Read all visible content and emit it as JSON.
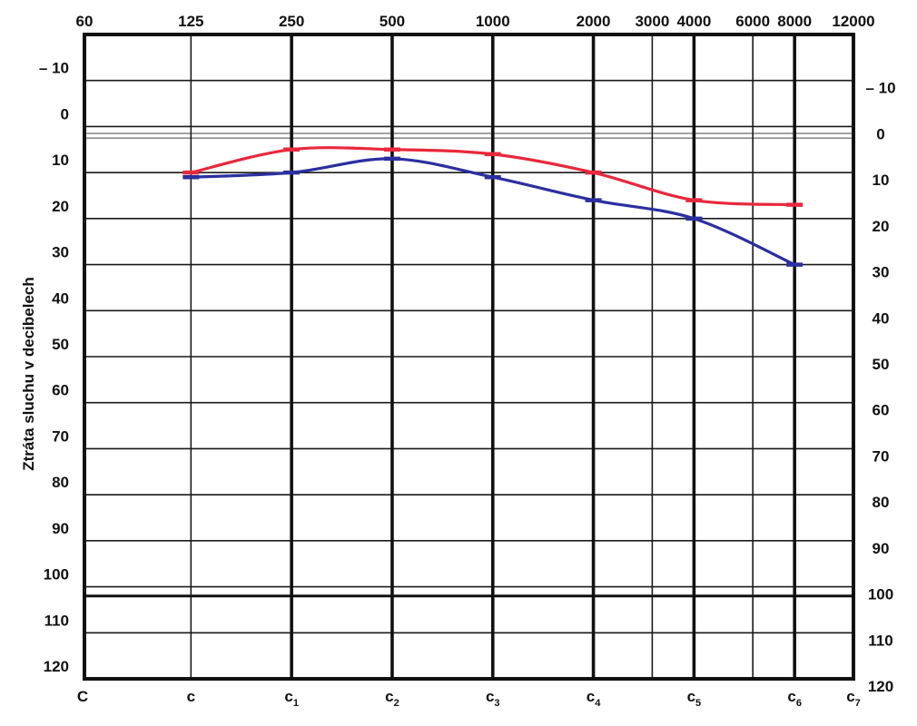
{
  "chart_data": {
    "type": "line",
    "title": "",
    "xlabel": "",
    "ylabel": "Ztráta sluchu v decibelech",
    "x_scale": "log",
    "y_inverted": true,
    "xlim": [
      60,
      12000
    ],
    "ylim": [
      -20,
      120
    ],
    "x_ticks": [
      {
        "label": "60",
        "value": 60
      },
      {
        "label": "125",
        "value": 125
      },
      {
        "label": "250",
        "value": 250
      },
      {
        "label": "500",
        "value": 500
      },
      {
        "label": "1000",
        "value": 1000
      },
      {
        "label": "2000",
        "value": 2000
      },
      {
        "label": "3000",
        "value": 3000
      },
      {
        "label": "4000",
        "value": 4000
      },
      {
        "label": "6000",
        "value": 6000
      },
      {
        "label": "8000",
        "value": 8000
      },
      {
        "label": "12000",
        "value": 12000
      }
    ],
    "note_labels": [
      {
        "base": "C",
        "sub": "",
        "value": 60
      },
      {
        "base": "c",
        "sub": "",
        "value": 125
      },
      {
        "base": "c",
        "sub": "1",
        "value": 250
      },
      {
        "base": "c",
        "sub": "2",
        "value": 500
      },
      {
        "base": "c",
        "sub": "3",
        "value": 1000
      },
      {
        "base": "c",
        "sub": "4",
        "value": 2000
      },
      {
        "base": "c",
        "sub": "5",
        "value": 4000
      },
      {
        "base": "c",
        "sub": "6",
        "value": 8000
      },
      {
        "base": "c",
        "sub": "7",
        "value": 12000
      }
    ],
    "y_ticks": [
      {
        "label": "– 10",
        "value": -10
      },
      {
        "label": "0",
        "value": 0
      },
      {
        "label": "10",
        "value": 10
      },
      {
        "label": "20",
        "value": 20
      },
      {
        "label": "30",
        "value": 30
      },
      {
        "label": "40",
        "value": 40
      },
      {
        "label": "50",
        "value": 50
      },
      {
        "label": "60",
        "value": 60
      },
      {
        "label": "70",
        "value": 70
      },
      {
        "label": "80",
        "value": 80
      },
      {
        "label": "90",
        "value": 90
      },
      {
        "label": "100",
        "value": 100
      },
      {
        "label": "110",
        "value": 110
      },
      {
        "label": "120",
        "value": 120
      }
    ],
    "thick_verticals": [
      250,
      500,
      1000,
      2000,
      4000,
      8000
    ],
    "thin_verticals": [
      125,
      3000,
      6000,
      12000
    ],
    "thick_horizontals": [
      102
    ],
    "zero_reference_lines": [
      1.5,
      2.5
    ],
    "grid": true,
    "legend": "none",
    "series": [
      {
        "color": "#e8283c",
        "points": [
          [
            125,
            10
          ],
          [
            250,
            5
          ],
          [
            500,
            5
          ],
          [
            1000,
            6
          ],
          [
            2000,
            10
          ],
          [
            4000,
            16
          ],
          [
            8000,
            17
          ]
        ]
      },
      {
        "color": "#2b2fa0",
        "points": [
          [
            125,
            11
          ],
          [
            250,
            10
          ],
          [
            500,
            7
          ],
          [
            1000,
            11
          ],
          [
            2000,
            16
          ],
          [
            4000,
            20
          ],
          [
            8000,
            30
          ]
        ]
      }
    ]
  }
}
